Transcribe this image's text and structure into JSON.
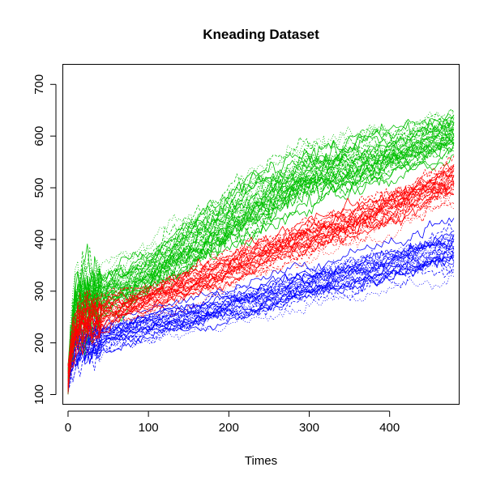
{
  "chart_data": {
    "type": "line",
    "title": "Kneading Dataset",
    "xlabel": "Times",
    "ylabel": "",
    "xlim": [
      -6,
      486
    ],
    "ylim": [
      82,
      738
    ],
    "x_ticks": [
      0,
      100,
      200,
      300,
      400
    ],
    "y_ticks": [
      100,
      200,
      300,
      400,
      500,
      600,
      700
    ],
    "grid": false,
    "legend": "none",
    "x_range_of_curves": [
      0,
      480
    ],
    "series": [
      {
        "color": "#00C000",
        "curve_count": 40,
        "x": [
          0,
          10,
          40,
          100,
          150,
          200,
          250,
          300,
          350,
          400,
          450,
          480
        ],
        "mean": [
          160,
          270,
          300,
          335,
          390,
          440,
          485,
          525,
          545,
          565,
          590,
          605
        ],
        "spread": [
          20,
          45,
          40,
          45,
          45,
          50,
          50,
          50,
          45,
          40,
          35,
          35
        ]
      },
      {
        "color": "#FF0000",
        "curve_count": 30,
        "x": [
          0,
          10,
          40,
          100,
          150,
          200,
          250,
          300,
          350,
          400,
          450,
          480
        ],
        "mean": [
          150,
          230,
          255,
          285,
          315,
          345,
          375,
          405,
          430,
          460,
          495,
          515
        ],
        "spread": [
          20,
          30,
          30,
          25,
          30,
          30,
          30,
          35,
          35,
          35,
          35,
          35
        ]
      },
      {
        "color": "#0000FF",
        "curve_count": 30,
        "x": [
          0,
          10,
          40,
          100,
          150,
          200,
          250,
          300,
          350,
          400,
          450,
          480
        ],
        "mean": [
          140,
          195,
          210,
          235,
          250,
          270,
          290,
          310,
          330,
          350,
          370,
          380
        ],
        "spread": [
          20,
          25,
          25,
          25,
          25,
          25,
          30,
          30,
          30,
          30,
          35,
          40
        ]
      }
    ]
  }
}
